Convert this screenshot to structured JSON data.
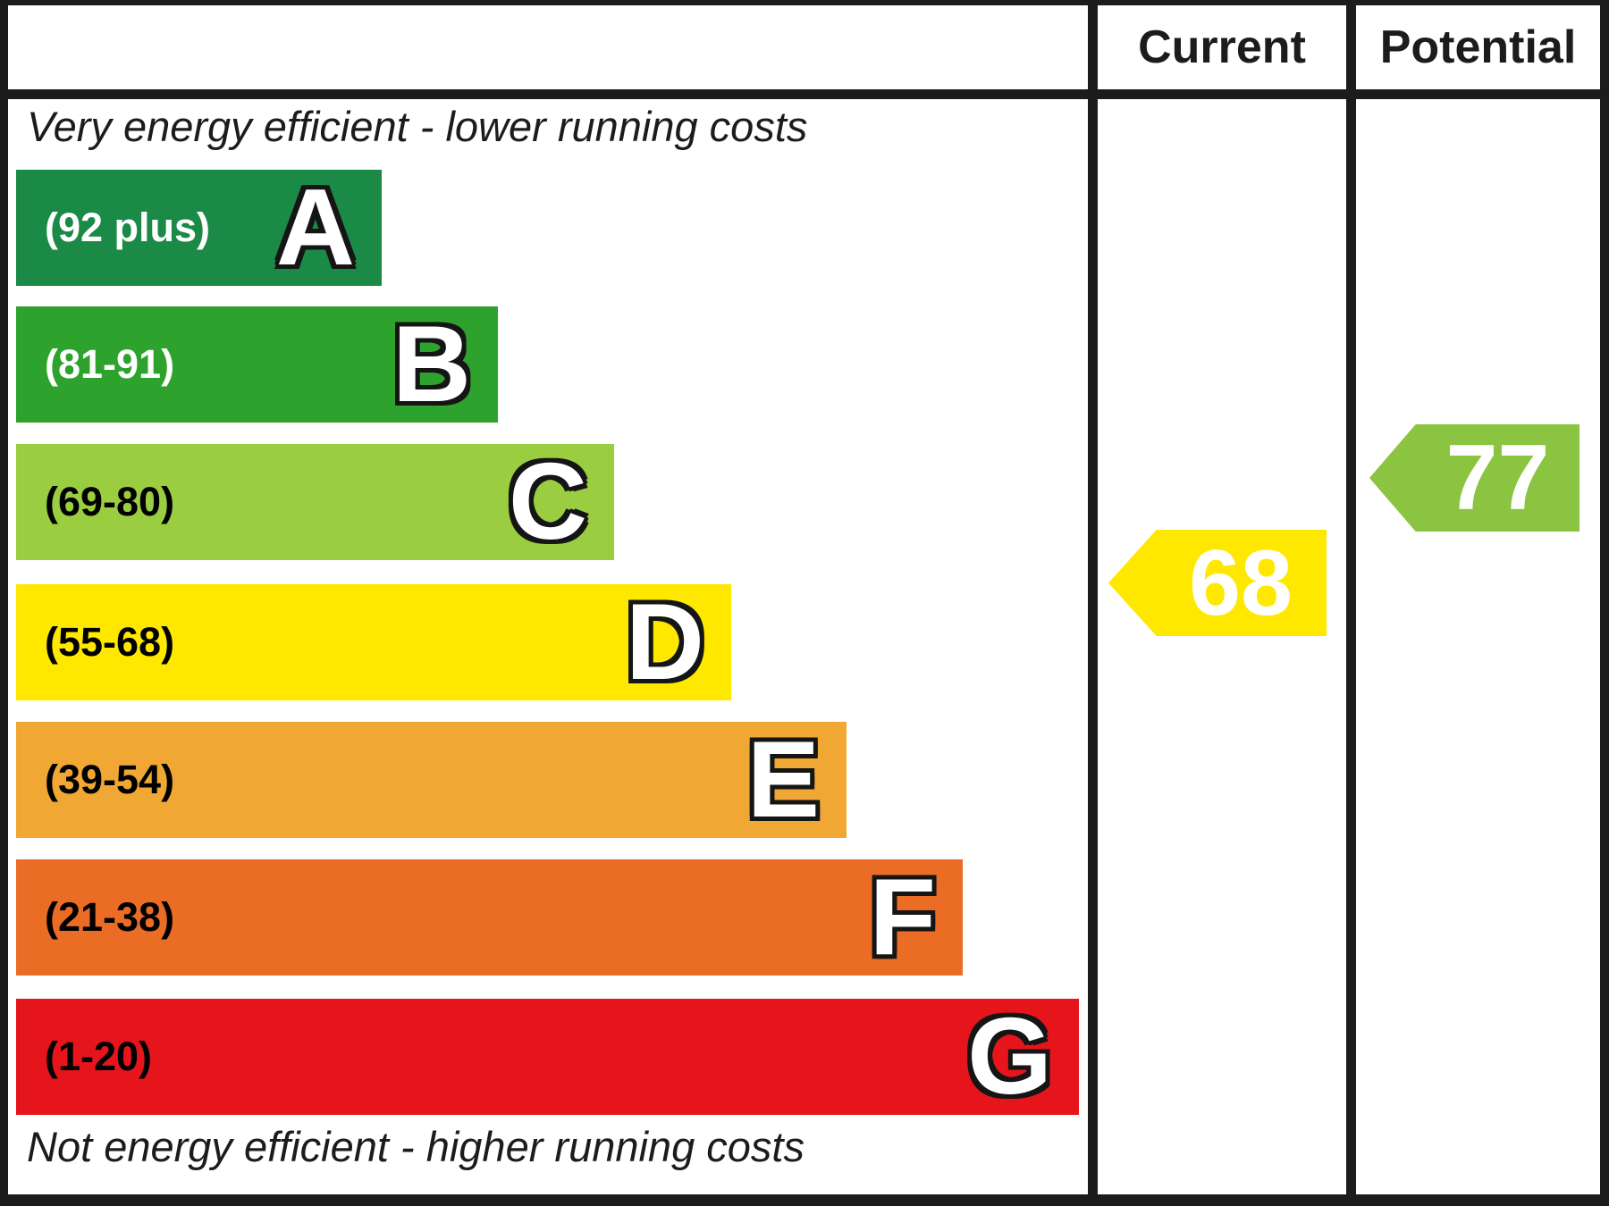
{
  "header": {
    "current_label": "Current",
    "potential_label": "Potential"
  },
  "captions": {
    "top": "Very energy efficient - lower running costs",
    "bottom": "Not energy efficient - higher running costs"
  },
  "bands": [
    {
      "letter": "A",
      "range": "(92 plus)",
      "color": "#1b8a47",
      "text_color": "#ffffff"
    },
    {
      "letter": "B",
      "range": "(81-91)",
      "color": "#2da32d",
      "text_color": "#ffffff"
    },
    {
      "letter": "C",
      "range": "(69-80)",
      "color": "#9bcd41",
      "text_color": "#000000"
    },
    {
      "letter": "D",
      "range": "(55-68)",
      "color": "#ffe800",
      "text_color": "#000000"
    },
    {
      "letter": "E",
      "range": "(39-54)",
      "color": "#f0a733",
      "text_color": "#000000"
    },
    {
      "letter": "F",
      "range": "(21-38)",
      "color": "#eb6c25",
      "text_color": "#000000"
    },
    {
      "letter": "G",
      "range": "(1-20)",
      "color": "#e6151c",
      "text_color": "#000000"
    }
  ],
  "ratings": {
    "current": {
      "value": "68",
      "color": "#ffe800"
    },
    "potential": {
      "value": "77",
      "color": "#8bc440"
    }
  },
  "chart_data": {
    "type": "bar",
    "chart_kind": "epc-energy-efficiency-rating",
    "categories": [
      "A",
      "B",
      "C",
      "D",
      "E",
      "F",
      "G"
    ],
    "band_ranges": [
      "92 plus",
      "81-91",
      "69-80",
      "55-68",
      "39-54",
      "21-38",
      "1-20"
    ],
    "band_colors": [
      "#1b8a47",
      "#2da32d",
      "#9bcd41",
      "#ffe800",
      "#f0a733",
      "#eb6c25",
      "#e6151c"
    ],
    "columns": [
      "Current",
      "Potential"
    ],
    "markers": [
      {
        "name": "Current",
        "value": 68,
        "band": "D",
        "color": "#ffe800"
      },
      {
        "name": "Potential",
        "value": 77,
        "band": "C",
        "color": "#8bc440"
      }
    ],
    "annotations": [
      "Very energy efficient - lower running costs",
      "Not energy efficient - higher running costs"
    ],
    "axis_range": [
      1,
      100
    ],
    "legend_position": "none"
  }
}
